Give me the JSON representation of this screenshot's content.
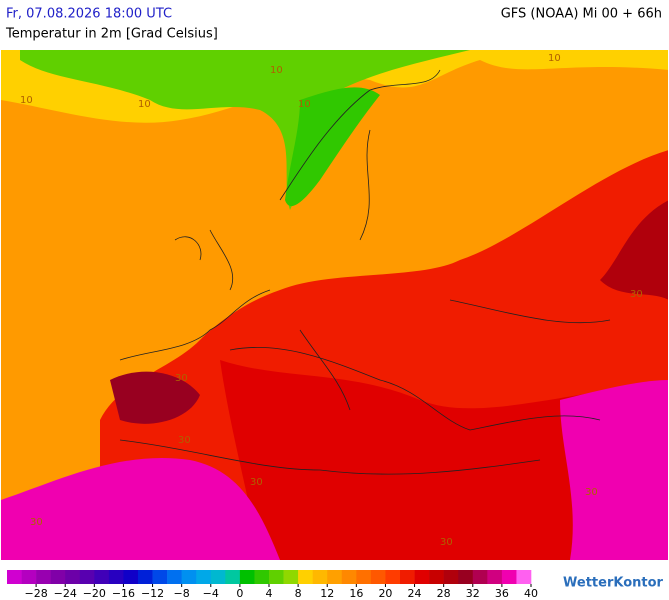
{
  "header": {
    "datetime": "Fr, 07.08.2026 18:00 UTC",
    "model": "GFS (NOAA) Mi 00 + 66h",
    "title": "Temperatur in 2m [Grad Celsius]"
  },
  "map_labels": [
    "10",
    "10",
    "10",
    "10",
    "10",
    "30",
    "30",
    "30",
    "30",
    "30",
    "30",
    "30"
  ],
  "legend": {
    "range": [
      -32,
      40
    ],
    "colors": [
      "#d000d0",
      "#b400c0",
      "#9800b0",
      "#8000a8",
      "#6c00a8",
      "#5800b0",
      "#4000b8",
      "#2800c0",
      "#1000c8",
      "#0020d8",
      "#0048e8",
      "#0070f0",
      "#0090f0",
      "#00a8e8",
      "#00b8d0",
      "#00c8a0",
      "#00c000",
      "#30c800",
      "#60d000",
      "#90d800",
      "#ffd000",
      "#ffb800",
      "#ffa000",
      "#ff8800",
      "#ff7000",
      "#ff5800",
      "#ff3c00",
      "#f01c00",
      "#e00000",
      "#c80000",
      "#b0000c",
      "#980020",
      "#b00050",
      "#d00080",
      "#f000b0",
      "#ff60f0"
    ],
    "ticks": [
      {
        "value": -28,
        "label": "−28"
      },
      {
        "value": -24,
        "label": "−24"
      },
      {
        "value": -20,
        "label": "−20"
      },
      {
        "value": -16,
        "label": "−16"
      },
      {
        "value": -12,
        "label": "−12"
      },
      {
        "value": -8,
        "label": "−8"
      },
      {
        "value": -4,
        "label": "−4"
      },
      0,
      4,
      8,
      12,
      16,
      20,
      24,
      28,
      32,
      36,
      40
    ]
  },
  "brand": "WetterKontor"
}
